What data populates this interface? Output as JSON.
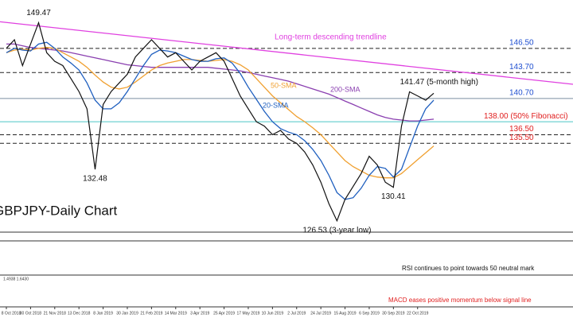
{
  "chart_data": {
    "type": "line",
    "title": "GBPJPY-Daily Chart",
    "categories": [
      "8 Oct 2018",
      null,
      null,
      "30 Oct 2018",
      null,
      null,
      "21 Nov 2018",
      null,
      null,
      "13 Dec 2018",
      null,
      null,
      "8 Jan 2019",
      null,
      null,
      "30 Jan 2019",
      null,
      null,
      "21 Feb 2019",
      null,
      null,
      "14 Mar 2019",
      null,
      null,
      "3 Apr 2019",
      null,
      null,
      "25 Apr 2019",
      null,
      null,
      "17 May 2019",
      null,
      null,
      "10 Jun 2019",
      null,
      null,
      "2 Jul 2019",
      null,
      null,
      "24 Jul 2019",
      null,
      null,
      "15 Aug 2019",
      null,
      null,
      "6 Sep 2019",
      null,
      null,
      "30 Sep 2019",
      null,
      null,
      "22 Oct 2019",
      null,
      null
    ],
    "ylim": [
      125.4,
      152.1
    ],
    "series": [
      {
        "name": "GBPJPY",
        "color": "#111111",
        "values": [
          146.5,
          147.5,
          144.5,
          147,
          149.47,
          146,
          145,
          144.5,
          143,
          141.5,
          139.5,
          132.48,
          140,
          141.5,
          142.5,
          143.5,
          145.5,
          146.5,
          147.5,
          146.5,
          145.5,
          146,
          145,
          144,
          145,
          145.5,
          146,
          145,
          143,
          141,
          139.5,
          138,
          137.5,
          136.5,
          137,
          136,
          135.5,
          134.5,
          133,
          131,
          128.5,
          126.53,
          129,
          130.5,
          132,
          134,
          133,
          131,
          130.41,
          137.5,
          141.47,
          141,
          140.5,
          141.3
        ]
      },
      {
        "name": "20-SMA",
        "color": "#1f5fbf",
        "values": [
          146,
          146.5,
          146.3,
          146.2,
          147,
          147.2,
          146.5,
          145.5,
          144.8,
          144,
          142.5,
          140.5,
          139.5,
          139.5,
          140.2,
          141.5,
          143,
          144.5,
          145.8,
          146.3,
          146.2,
          146,
          145.6,
          145.2,
          145,
          145,
          145.3,
          145.4,
          144.8,
          143.6,
          142,
          140.6,
          139.2,
          138,
          137.2,
          136.8,
          136.5,
          135.8,
          134.8,
          133.5,
          131.8,
          129.8,
          129,
          129.2,
          130.3,
          131.8,
          132.8,
          132.6,
          131.6,
          132.5,
          135,
          137.5,
          139.5,
          140.5
        ]
      },
      {
        "name": "50-SMA",
        "color": "#f0a030",
        "values": [
          146,
          146.3,
          146.4,
          146.3,
          146.5,
          146.6,
          146.5,
          146,
          145.5,
          145,
          144.3,
          143.4,
          142.6,
          142,
          141.8,
          142,
          142.6,
          143.3,
          144,
          144.5,
          144.8,
          145,
          145.2,
          145.2,
          145.1,
          145,
          145.1,
          145.2,
          145,
          144.6,
          144,
          143,
          142,
          141,
          140.2,
          139.4,
          138.6,
          138,
          137.3,
          136.5,
          135.5,
          134.5,
          133.5,
          132.8,
          132.3,
          131.8,
          131.6,
          131.5,
          131.5,
          132,
          132.8,
          133.6,
          134.4,
          135.2
        ]
      },
      {
        "name": "200-SMA",
        "color": "#8a3fb0",
        "values": [
          147,
          147,
          146.8,
          146.6,
          146.5,
          146.4,
          146.3,
          146.2,
          146,
          145.8,
          145.6,
          145.4,
          145.2,
          145,
          144.8,
          144.6,
          144.5,
          144.4,
          144.3,
          144.3,
          144.3,
          144.3,
          144.3,
          144.3,
          144.3,
          144.3,
          144.2,
          144.1,
          144,
          143.9,
          143.7,
          143.5,
          143.3,
          143.1,
          142.9,
          142.7,
          142.4,
          142.1,
          141.8,
          141.5,
          141.2,
          140.8,
          140.4,
          140,
          139.6,
          139.2,
          138.8,
          138.5,
          138.3,
          138.2,
          138.1,
          138.1,
          138.2,
          138.3
        ]
      }
    ],
    "trendline": {
      "label": "Long-term descending trendline",
      "color": "#e040e0",
      "values": [
        149.5,
        144.1
      ]
    },
    "levels": [
      {
        "value": 146.5,
        "label": "146.50",
        "color": "#1f4fd0",
        "style": "dashed"
      },
      {
        "value": 143.7,
        "label": "143.70",
        "color": "#1f4fd0",
        "style": "dashed"
      },
      {
        "value": 140.7,
        "label": "140.70",
        "color": "#1f4fd0",
        "style": "solid"
      },
      {
        "value": 138,
        "label": "138.00 (50% Fibonacci)",
        "color": "#e02020",
        "style": "solid"
      },
      {
        "value": 136.5,
        "label": "136.50",
        "color": "#e02020",
        "style": "dashed"
      },
      {
        "value": 135.5,
        "label": "135.50",
        "color": "#e02020",
        "style": "dashed"
      }
    ],
    "annotations": [
      {
        "value": 149.47,
        "label": "149.47"
      },
      {
        "value": 132.48,
        "label": "132.48"
      },
      {
        "value": 126.53,
        "label": "126.53 (3-year low)"
      },
      {
        "value": 130.41,
        "label": "130.41"
      },
      {
        "value": 141.47,
        "label": "141.47 (5-month high)"
      }
    ],
    "rsi_note": "RSI continues to point towards 50 neutral mark",
    "macd_readout": "1.4938 1.6430",
    "macd_note": "MACD eases positive momentum below signal line"
  }
}
